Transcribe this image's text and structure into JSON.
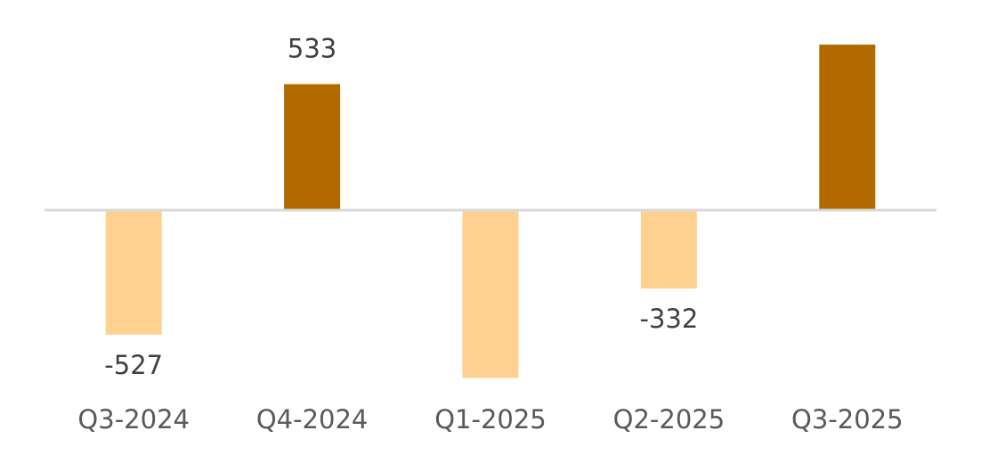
{
  "chart_data": {
    "type": "bar",
    "categories": [
      "Q3-2024",
      "Q4-2024",
      "Q1-2025",
      "Q2-2025",
      "Q3-2025"
    ],
    "values": [
      -527,
      533,
      -710,
      -332,
      700
    ],
    "data_labels": [
      "-527",
      "533",
      "",
      "-332",
      ""
    ],
    "title": "",
    "xlabel": "",
    "ylabel": "",
    "ylim": [
      -800,
      800
    ],
    "grid": false,
    "legend": "none",
    "colors": {
      "positive": "#B26A00",
      "negative": "#FFD191",
      "axis": "#D9D9D9"
    }
  }
}
